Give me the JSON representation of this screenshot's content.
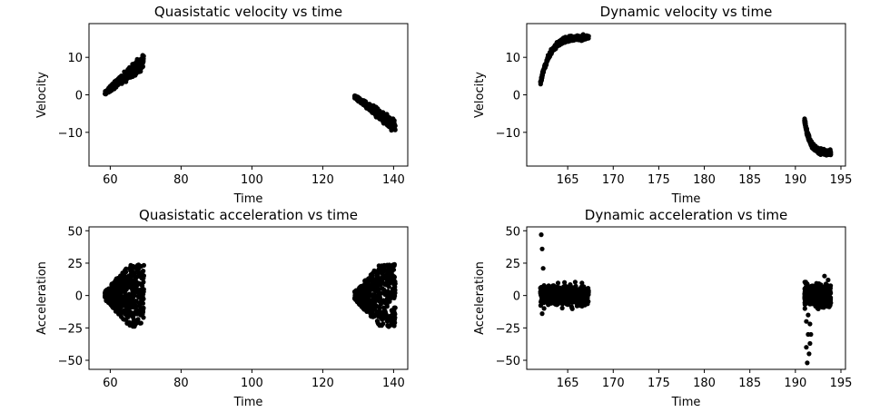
{
  "chart_data": [
    {
      "type": "scatter",
      "title": "Quasistatic velocity vs time",
      "xlabel": "Time",
      "ylabel": "Velocity",
      "xlim": [
        54,
        144
      ],
      "ylim": [
        -19,
        19
      ],
      "xticks": [
        60,
        80,
        100,
        120,
        140
      ],
      "yticks": [
        -10,
        0,
        10
      ],
      "grid": false,
      "marker_color": "#000000",
      "clusters": [
        {
          "x_start": 58.5,
          "x_end": 69.5,
          "y_start": 0.5,
          "y_end": 9.0,
          "spread": 2.2
        },
        {
          "x_start": 129.0,
          "x_end": 140.5,
          "y_start": -0.5,
          "y_end": -8.5,
          "spread": 2.0
        }
      ]
    },
    {
      "type": "scatter",
      "title": "Dynamic velocity vs time",
      "xlabel": "Time",
      "ylabel": "Velocity",
      "xlim": [
        160.5,
        195.5
      ],
      "ylim": [
        -19,
        19
      ],
      "xticks": [
        165,
        170,
        175,
        180,
        185,
        190,
        195
      ],
      "yticks": [
        -10,
        0,
        10
      ],
      "grid": false,
      "marker_color": "#000000",
      "clusters": [
        {
          "x_start": 162.0,
          "x_end": 167.3,
          "shape": "rise",
          "y_start": 3.0,
          "y_end": 15.5,
          "spread": 1.0
        },
        {
          "x_start": 191.0,
          "x_end": 193.9,
          "shape": "fall",
          "y_start": -6.5,
          "y_end": -15.5,
          "spread": 1.0
        }
      ]
    },
    {
      "type": "scatter",
      "title": "Quasistatic acceleration vs time",
      "xlabel": "Time",
      "ylabel": "Acceleration",
      "xlim": [
        54,
        144
      ],
      "ylim": [
        -57,
        53
      ],
      "xticks": [
        60,
        80,
        100,
        120,
        140
      ],
      "yticks": [
        -50,
        -25,
        0,
        25,
        50
      ],
      "grid": false,
      "marker_color": "#000000",
      "clusters": [
        {
          "x_start": 58.5,
          "x_end": 69.5,
          "shape": "wedge",
          "y_center": 0,
          "y_half_max": 21
        },
        {
          "x_start": 129.0,
          "x_end": 140.5,
          "shape": "wedge",
          "y_center": 0,
          "y_half_max": 21
        }
      ]
    },
    {
      "type": "scatter",
      "title": "Dynamic acceleration vs time",
      "xlabel": "Time",
      "ylabel": "Acceleration",
      "xlim": [
        160.5,
        195.5
      ],
      "ylim": [
        -57,
        53
      ],
      "xticks": [
        165,
        170,
        175,
        180,
        185,
        190,
        195
      ],
      "yticks": [
        -50,
        -25,
        0,
        25,
        50
      ],
      "grid": false,
      "marker_color": "#000000",
      "clusters": [
        {
          "x_start": 162.0,
          "x_end": 167.3,
          "shape": "band",
          "y_center": 0,
          "y_half_max": 12
        },
        {
          "x_start": 191.0,
          "x_end": 193.9,
          "shape": "band",
          "y_center": 0,
          "y_half_max": 12
        }
      ],
      "outliers": [
        [
          162.1,
          47
        ],
        [
          162.2,
          36
        ],
        [
          162.3,
          21
        ],
        [
          162.2,
          -14
        ],
        [
          162.4,
          -10
        ],
        [
          191.3,
          -52
        ],
        [
          191.2,
          -40
        ],
        [
          191.5,
          -45
        ],
        [
          191.6,
          -37
        ],
        [
          191.4,
          -30
        ],
        [
          191.7,
          -30
        ],
        [
          191.2,
          -20
        ],
        [
          191.6,
          -22
        ],
        [
          191.4,
          -15
        ],
        [
          193.2,
          15
        ],
        [
          193.6,
          12
        ],
        [
          191.3,
          9
        ]
      ]
    }
  ]
}
